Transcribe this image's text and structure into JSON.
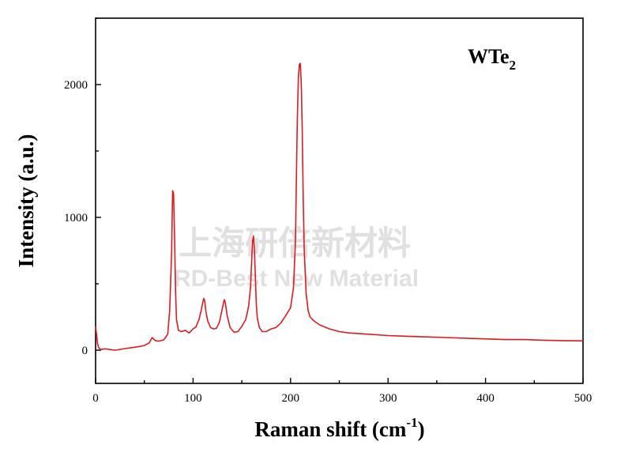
{
  "chart_data": {
    "type": "line",
    "annotation": {
      "base": "WTe",
      "sub": "2"
    },
    "xlabel": {
      "main": "Raman shift (cm",
      "sup": "-1",
      "tail": ")"
    },
    "ylabel": "Intensity (a.u.)",
    "xlim": [
      0,
      500
    ],
    "ylim": [
      -250,
      2500
    ],
    "xticks": [
      0,
      100,
      200,
      300,
      400,
      500
    ],
    "yticks": [
      0,
      1000,
      2000
    ],
    "grid": false,
    "series": [
      {
        "color": "#e0191f",
        "x": [
          0,
          1,
          2,
          3,
          5,
          10,
          20,
          30,
          40,
          50,
          55,
          58,
          60,
          62,
          65,
          70,
          74,
          76,
          78,
          79,
          80,
          81,
          82,
          83,
          85,
          88,
          92,
          96,
          100,
          103,
          106,
          108,
          110,
          111,
          112,
          113,
          115,
          118,
          121,
          124,
          127,
          129,
          131,
          132,
          133,
          135,
          138,
          142,
          146,
          150,
          154,
          157,
          159,
          160,
          161,
          162,
          163,
          164,
          165,
          166,
          168,
          171,
          175,
          180,
          185,
          190,
          195,
          200,
          203,
          205,
          206,
          207,
          208,
          209,
          210,
          211,
          212,
          213,
          214,
          216,
          218,
          220,
          224,
          230,
          240,
          250,
          260,
          280,
          300,
          320,
          340,
          360,
          380,
          400,
          420,
          440,
          460,
          480,
          500
        ],
        "y": [
          180,
          120,
          50,
          20,
          5,
          10,
          0,
          12,
          22,
          35,
          55,
          95,
          80,
          70,
          68,
          78,
          120,
          300,
          750,
          1200,
          1180,
          850,
          450,
          230,
          150,
          140,
          150,
          130,
          160,
          175,
          230,
          290,
          360,
          390,
          370,
          300,
          220,
          170,
          160,
          165,
          210,
          280,
          350,
          380,
          360,
          260,
          170,
          135,
          140,
          180,
          230,
          330,
          480,
          650,
          820,
          860,
          750,
          520,
          330,
          240,
          170,
          140,
          140,
          160,
          170,
          205,
          260,
          320,
          470,
          820,
          1300,
          1750,
          2050,
          2150,
          2160,
          2000,
          1650,
          1150,
          750,
          430,
          300,
          250,
          220,
          190,
          160,
          140,
          130,
          120,
          110,
          105,
          100,
          95,
          90,
          85,
          80,
          80,
          75,
          72,
          70
        ]
      }
    ]
  },
  "watermark": {
    "cn": "上海研倍新材料",
    "en": "RD-Best New Material"
  }
}
